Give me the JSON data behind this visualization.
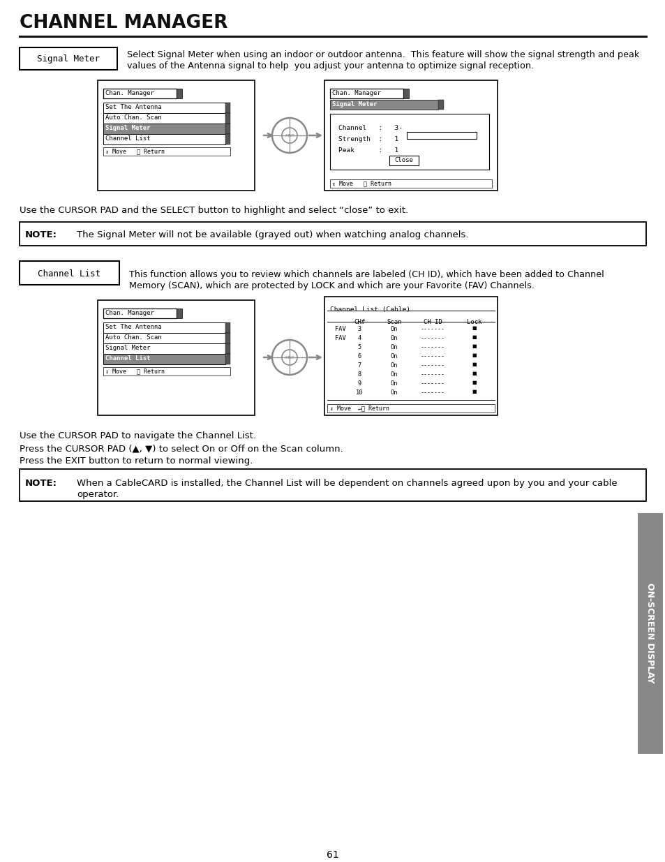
{
  "title": "CHANNEL MANAGER",
  "bg_color": "#ffffff",
  "text_color": "#000000",
  "section1_label": "Signal Meter",
  "section1_desc_line1": "Select Signal Meter when using an indoor or outdoor antenna.  This feature will show the signal strength and peak",
  "section1_desc_line2": "values of the Antenna signal to help  you adjust your antenna to optimize signal reception.",
  "cursor_text1": "Use the CURSOR PAD and the SELECT button to highlight and select “close” to exit.",
  "note1_label": "NOTE:",
  "note1_text": "The Signal Meter will not be available (grayed out) when watching analog channels.",
  "section2_label": "Channel List",
  "section2_desc_line1": "This function allows you to review which channels are labeled (CH ID), which have been added to Channel",
  "section2_desc_line2": "Memory (SCAN), which are protected by LOCK and which are your Favorite (FAV) Channels.",
  "cursor_text2_line1": "Use the CURSOR PAD to navigate the Channel List.",
  "cursor_text2_line2": "Press the CURSOR PAD (▲, ▼) to select On or Off on the Scan column.",
  "cursor_text2_line3": "Press the EXIT button to return to normal viewing.",
  "note2_label": "NOTE:",
  "note2_text_line1": "When a CableCARD is installed, the Channel List will be dependent on channels agreed upon by you and your cable",
  "note2_text_line2": "operator.",
  "page_num": "61",
  "sidebar_text": "ON-SCREEN DISPLAY",
  "menu_items": [
    "Set The Antenna",
    "Auto Chan. Scan",
    "Signal Meter",
    "Channel List"
  ],
  "ch_rows": [
    [
      "FAV",
      "3",
      "On",
      "-------"
    ],
    [
      "FAV",
      "4",
      "On",
      "-------"
    ],
    [
      "",
      "5",
      "On",
      "-------"
    ],
    [
      "",
      "6",
      "On",
      "-------"
    ],
    [
      "",
      "7",
      "On",
      "-------"
    ],
    [
      "",
      "8",
      "On",
      "-------"
    ],
    [
      "",
      "9",
      "On",
      "-------"
    ],
    [
      "",
      "10",
      "On",
      "-------"
    ]
  ]
}
